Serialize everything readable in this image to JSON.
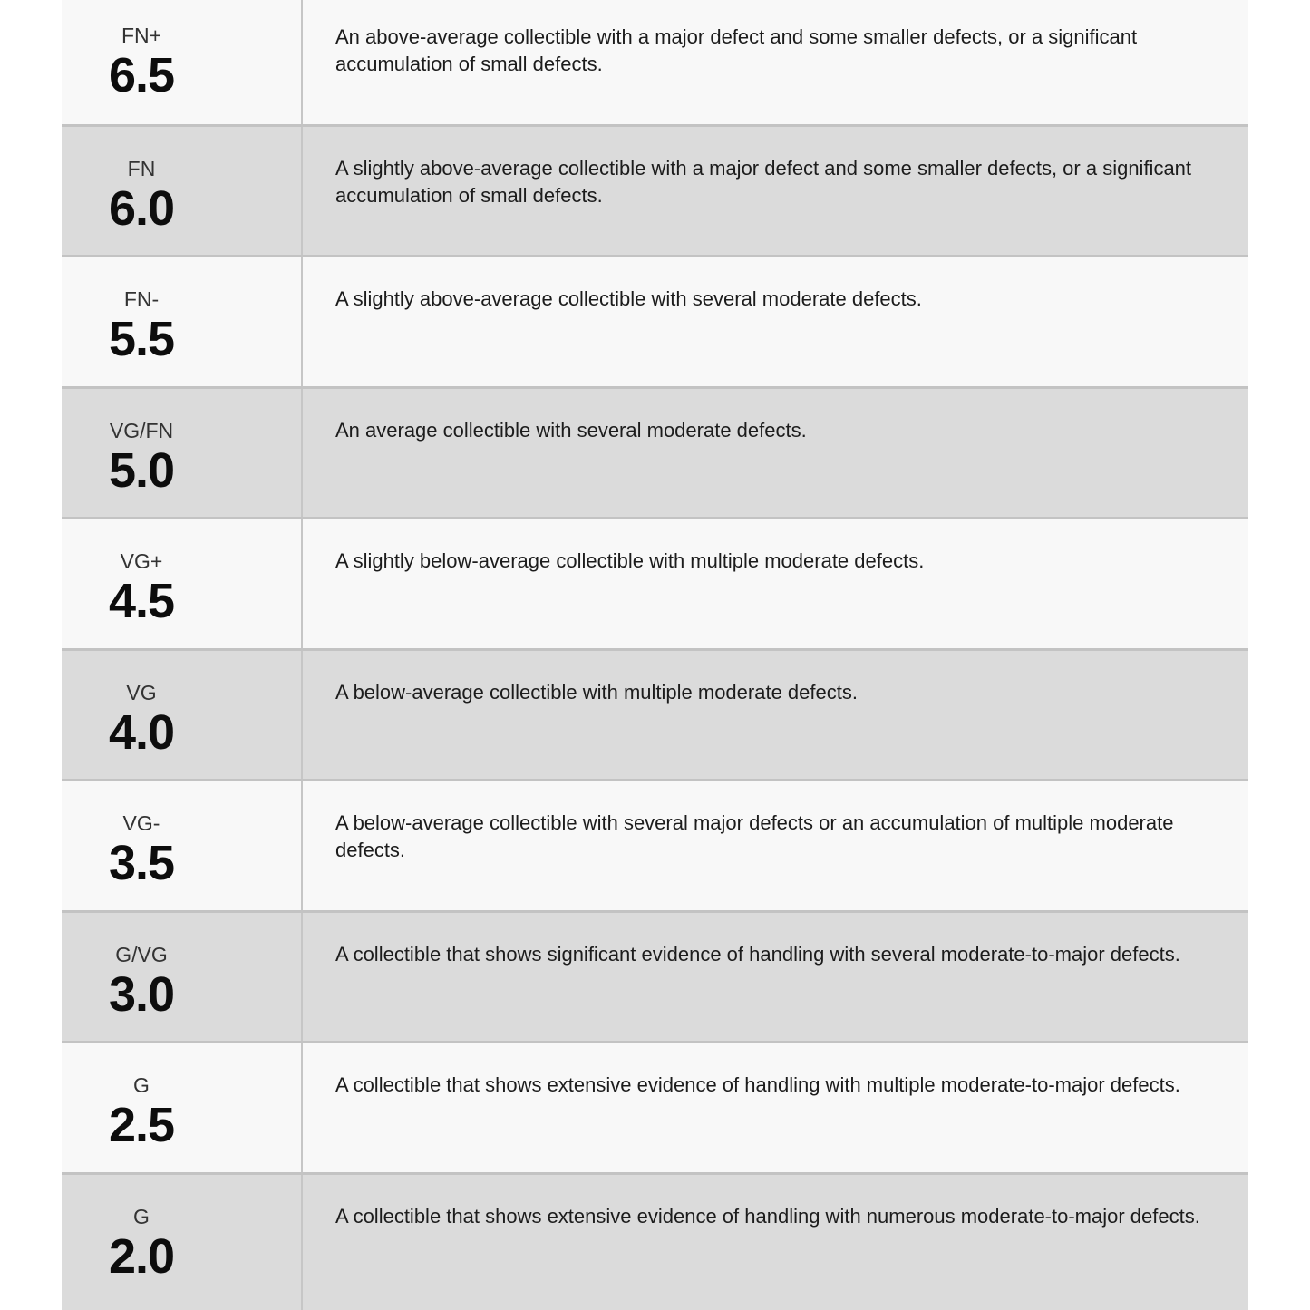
{
  "table": {
    "colors": {
      "light_row_background": "#f8f8f8",
      "gray_row_background": "#dbdbdb",
      "row_divider": "#c3c3c3",
      "column_divider": "#c6c6c6",
      "label_text": "#333333",
      "score_text": "#0d0d0d",
      "description_text": "#1c1c1c"
    },
    "rows": [
      {
        "grade": "FN+",
        "score": "6.5",
        "description": "An above-average collectible with a major defect and some smaller defects, or a significant accumulation of small defects."
      },
      {
        "grade": "FN",
        "score": "6.0",
        "description": "A slightly above-average collectible with a major defect and some smaller defects, or a significant accumulation of small defects."
      },
      {
        "grade": "FN-",
        "score": "5.5",
        "description": "A slightly above-average collectible with several moderate defects."
      },
      {
        "grade": "VG/FN",
        "score": "5.0",
        "description": "An average collectible with several moderate defects."
      },
      {
        "grade": "VG+",
        "score": "4.5",
        "description": "A slightly below-average collectible with multiple moderate defects."
      },
      {
        "grade": "VG",
        "score": "4.0",
        "description": "A below-average collectible with multiple moderate defects."
      },
      {
        "grade": "VG-",
        "score": "3.5",
        "description": "A below-average collectible with several major defects or an accumulation of multiple moderate defects."
      },
      {
        "grade": "G/VG",
        "score": "3.0",
        "description": "A collectible that shows significant evidence of handling with several moderate-to-major defects."
      },
      {
        "grade": "G",
        "score": "2.5",
        "description": "A collectible that shows extensive evidence of handling with multiple moderate-to-major defects."
      },
      {
        "grade": "G",
        "score": "2.0",
        "description": "A collectible that shows extensive evidence of handling with numerous moderate-to-major defects."
      }
    ]
  }
}
